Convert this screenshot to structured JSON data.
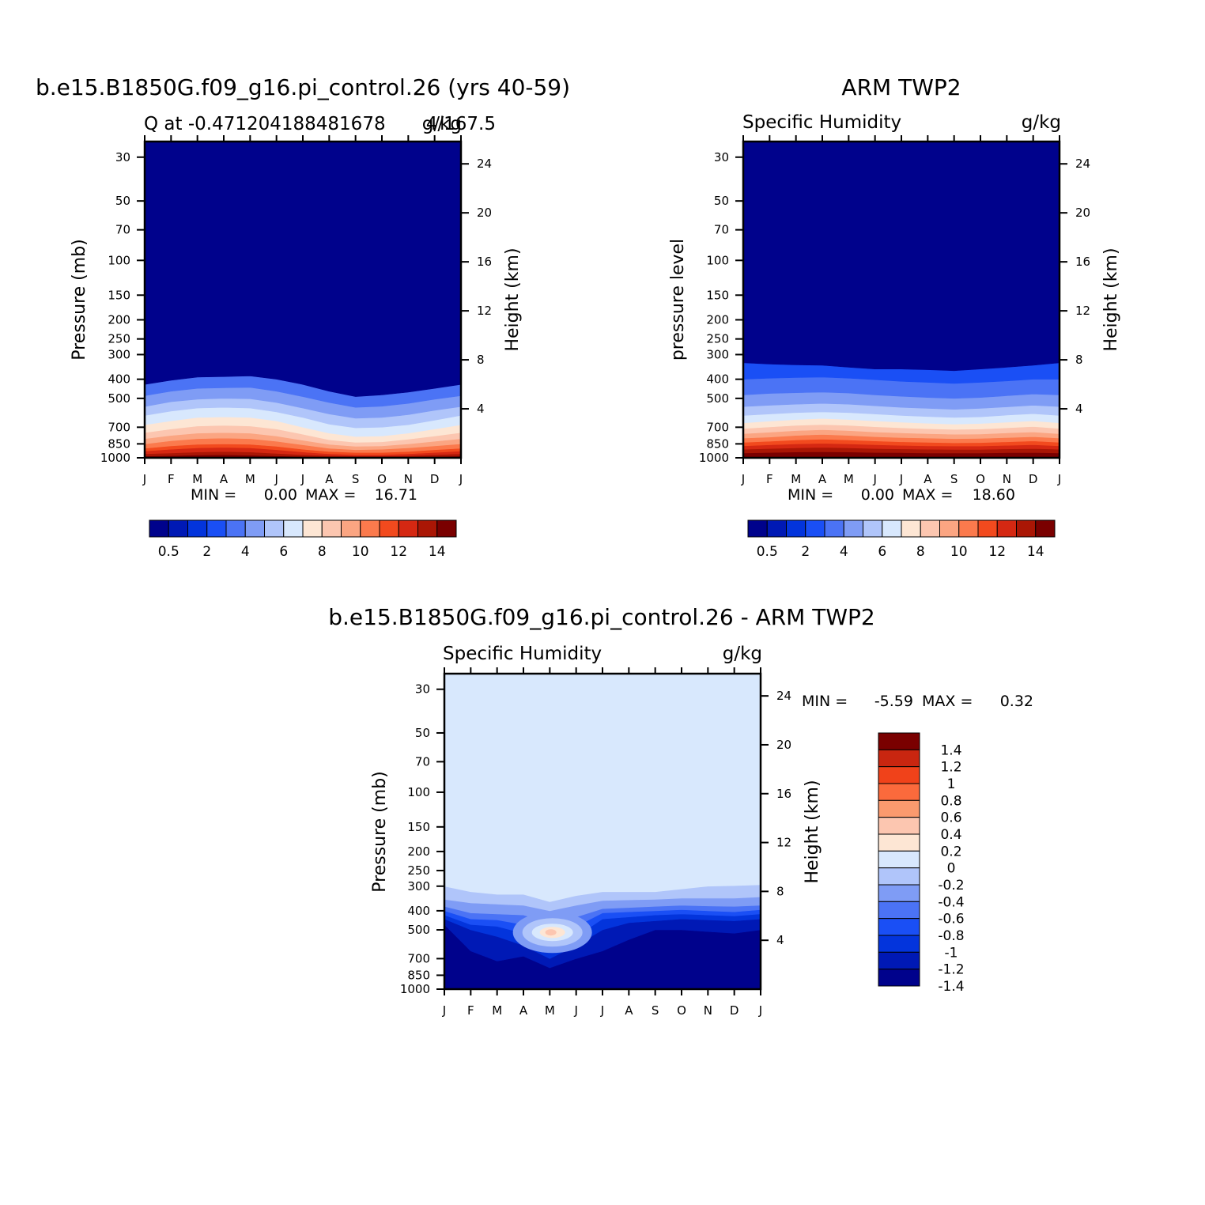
{
  "colors": {
    "fill_scale": [
      "#00028c",
      "#0019b5",
      "#0334dc",
      "#1a4ff5",
      "#4b73f5",
      "#7f9cf5",
      "#b0c5fa",
      "#d8e8fd",
      "#fde6d4",
      "#fcc6b0",
      "#fba582",
      "#fb7a4d",
      "#f24a1e",
      "#d52812",
      "#aa1605",
      "#7a0000"
    ],
    "diff_scale": [
      "#00028c",
      "#0019b5",
      "#0334dc",
      "#1a4ff5",
      "#4b73f5",
      "#7f9cf5",
      "#b0c5fa",
      "#d8e8fd",
      "#fde6d4",
      "#fcc6b0",
      "#fb9a6e",
      "#fb6a3c",
      "#f0421a",
      "#c92610",
      "#7a0000"
    ]
  },
  "panels": [
    {
      "id": "model",
      "main_title": "b.e15.B1850G.f09_g16.pi_control.26 (yrs 40-59)",
      "left_subtitle": "Q at -0.471204188481678",
      "right_subtitle": "4/167.5",
      "unit_subtitle": "g/kg",
      "ylabel": "Pressure (mb)",
      "y2label": "Height (km)",
      "min_label": "MIN =",
      "min_value": "0.00",
      "max_label": "MAX =",
      "max_value": "16.71"
    },
    {
      "id": "obs",
      "main_title": "ARM TWP2",
      "left_subtitle": "Specific Humidity",
      "unit_subtitle": "g/kg",
      "ylabel": "pressure level",
      "y2label": "Height (km)",
      "min_label": "MIN =",
      "min_value": "0.00",
      "max_label": "MAX =",
      "max_value": "18.60"
    },
    {
      "id": "diff",
      "main_title": "b.e15.B1850G.f09_g16.pi_control.26 - ARM TWP2",
      "left_subtitle": "Specific Humidity",
      "unit_subtitle": "g/kg",
      "ylabel": "Pressure (mb)",
      "y2label": "Height (km)",
      "min_label": "MIN =",
      "min_value": "-5.59",
      "max_label": "MAX =",
      "max_value": "0.32"
    }
  ],
  "chart_data": [
    {
      "type": "heatmap",
      "title": "b.e15.B1850G.f09_g16.pi_control.26 (yrs 40-59)",
      "xlabel": "",
      "ylabel": "Pressure (mb)",
      "y2label": "Height (km)",
      "x_tick_labels": [
        "J",
        "F",
        "M",
        "A",
        "M",
        "J",
        "J",
        "A",
        "S",
        "O",
        "N",
        "D",
        "J"
      ],
      "y_ticks": [
        30,
        50,
        70,
        100,
        150,
        200,
        250,
        300,
        400,
        500,
        700,
        850,
        1000
      ],
      "y2_ticks": [
        4,
        8,
        12,
        16,
        20,
        24
      ],
      "ylim": [
        1000,
        25
      ],
      "y_scale": "log",
      "contour_levels": [
        0.5,
        1,
        2,
        3,
        4,
        5,
        6,
        7,
        8,
        9,
        10,
        11,
        12,
        13,
        14
      ],
      "colorbar_labels": [
        "0.5",
        "2",
        "4",
        "6",
        "8",
        "10",
        "12",
        "14"
      ],
      "level_boundaries_mb": [
        [
          1000,
          1000,
          1000,
          1000,
          1000,
          1000,
          1000,
          1000,
          1000,
          1000,
          1000,
          1000,
          1000
        ],
        [
          980,
          975,
          968,
          965,
          970,
          978,
          985,
          988,
          990,
          990,
          988,
          985,
          980
        ],
        [
          955,
          945,
          935,
          930,
          935,
          950,
          965,
          975,
          980,
          980,
          975,
          965,
          955
        ],
        [
          925,
          905,
          890,
          885,
          890,
          910,
          935,
          955,
          965,
          965,
          955,
          940,
          925
        ],
        [
          895,
          870,
          855,
          850,
          855,
          875,
          905,
          930,
          940,
          940,
          930,
          910,
          895
        ],
        [
          850,
          820,
          800,
          795,
          800,
          825,
          860,
          895,
          910,
          905,
          890,
          870,
          850
        ],
        [
          800,
          770,
          750,
          745,
          750,
          775,
          815,
          855,
          875,
          870,
          850,
          825,
          800
        ],
        [
          745,
          715,
          690,
          685,
          690,
          715,
          760,
          810,
          835,
          830,
          805,
          775,
          745
        ],
        [
          680,
          650,
          625,
          620,
          625,
          650,
          700,
          750,
          780,
          775,
          750,
          715,
          680
        ],
        [
          610,
          580,
          560,
          555,
          560,
          585,
          625,
          675,
          705,
          700,
          680,
          645,
          610
        ],
        [
          550,
          520,
          505,
          500,
          502,
          525,
          560,
          600,
          630,
          625,
          605,
          575,
          550
        ],
        [
          485,
          460,
          445,
          442,
          440,
          460,
          490,
          525,
          555,
          548,
          530,
          505,
          485
        ],
        [
          425,
          405,
          390,
          388,
          385,
          400,
          425,
          460,
          490,
          480,
          465,
          445,
          425
        ],
        [
          25,
          25,
          25,
          25,
          25,
          25,
          25,
          25,
          25,
          25,
          25,
          25,
          25
        ]
      ],
      "min": 0.0,
      "max": 16.71
    },
    {
      "type": "heatmap",
      "title": "ARM TWP2",
      "xlabel": "",
      "ylabel": "pressure level",
      "y2label": "Height (km)",
      "x_tick_labels": [
        "J",
        "F",
        "M",
        "A",
        "M",
        "J",
        "J",
        "A",
        "S",
        "O",
        "N",
        "D",
        "J"
      ],
      "y_ticks": [
        30,
        50,
        70,
        100,
        150,
        200,
        250,
        300,
        400,
        500,
        700,
        850,
        1000
      ],
      "y2_ticks": [
        4,
        8,
        12,
        16,
        20,
        24
      ],
      "ylim": [
        1000,
        25
      ],
      "y_scale": "log",
      "contour_levels": [
        0.5,
        1,
        2,
        3,
        4,
        5,
        6,
        7,
        8,
        9,
        10,
        11,
        12,
        13,
        14
      ],
      "colorbar_labels": [
        "0.5",
        "2",
        "4",
        "6",
        "8",
        "10",
        "12",
        "14"
      ],
      "level_boundaries_mb": [
        [
          1000,
          1000,
          1000,
          1000,
          1000,
          1000,
          1000,
          1000,
          1000,
          1000,
          1000,
          1000,
          1000
        ],
        [
          945,
          940,
          935,
          932,
          935,
          940,
          942,
          945,
          945,
          945,
          942,
          940,
          945
        ],
        [
          905,
          898,
          890,
          885,
          890,
          898,
          902,
          905,
          908,
          908,
          902,
          898,
          905
        ],
        [
          870,
          860,
          850,
          845,
          850,
          858,
          865,
          870,
          872,
          872,
          865,
          858,
          870
        ],
        [
          835,
          825,
          812,
          805,
          812,
          822,
          830,
          835,
          840,
          838,
          830,
          822,
          835
        ],
        [
          795,
          785,
          770,
          762,
          770,
          782,
          790,
          795,
          800,
          798,
          790,
          782,
          795
        ],
        [
          755,
          742,
          728,
          720,
          728,
          740,
          748,
          755,
          760,
          758,
          748,
          740,
          755
        ],
        [
          710,
          698,
          685,
          678,
          685,
          696,
          705,
          712,
          718,
          715,
          705,
          695,
          710
        ],
        [
          665,
          652,
          640,
          632,
          640,
          650,
          660,
          668,
          675,
          670,
          660,
          650,
          665
        ],
        [
          610,
          600,
          590,
          585,
          590,
          600,
          610,
          618,
          625,
          620,
          608,
          598,
          610
        ],
        [
          550,
          542,
          535,
          530,
          535,
          545,
          555,
          562,
          568,
          562,
          552,
          542,
          550
        ],
        [
          480,
          472,
          468,
          465,
          470,
          480,
          488,
          495,
          500,
          495,
          485,
          475,
          480
        ],
        [
          400,
          395,
          392,
          390,
          395,
          402,
          410,
          415,
          420,
          415,
          408,
          400,
          400
        ],
        [
          330,
          335,
          338,
          340,
          348,
          355,
          355,
          358,
          362,
          355,
          348,
          340,
          330
        ],
        [
          25,
          25,
          25,
          25,
          25,
          25,
          25,
          25,
          25,
          25,
          25,
          25,
          25
        ]
      ],
      "min": 0.0,
      "max": 18.6
    },
    {
      "type": "heatmap",
      "title": "b.e15.B1850G.f09_g16.pi_control.26 - ARM TWP2",
      "xlabel": "",
      "ylabel": "Pressure (mb)",
      "y2label": "Height (km)",
      "x_tick_labels": [
        "J",
        "F",
        "M",
        "A",
        "M",
        "J",
        "J",
        "A",
        "S",
        "O",
        "N",
        "D",
        "J"
      ],
      "y_ticks": [
        30,
        50,
        70,
        100,
        150,
        200,
        250,
        300,
        400,
        500,
        700,
        850,
        1000
      ],
      "y2_ticks": [
        4,
        8,
        12,
        16,
        20,
        24
      ],
      "ylim": [
        1000,
        25
      ],
      "y_scale": "log",
      "contour_levels": [
        -1.4,
        -1.2,
        -1,
        -0.8,
        -0.6,
        -0.4,
        -0.2,
        0,
        0.2,
        0.4,
        0.6,
        0.8,
        1,
        1.2,
        1.4
      ],
      "colorbar_labels": [
        "1.4",
        "1.2",
        "1",
        "0.8",
        "0.6",
        "0.4",
        "0.2",
        "0",
        "-0.2",
        "-0.4",
        "-0.6",
        "-0.8",
        "-1",
        "-1.2",
        "-1.4"
      ],
      "level_boundaries_mb": [
        [
          1000,
          1000,
          1000,
          1000,
          1000,
          1000,
          1000,
          1000,
          1000,
          1000,
          1000,
          1000,
          1000
        ],
        [
          470,
          640,
          720,
          680,
          780,
          700,
          640,
          560,
          500,
          500,
          510,
          520,
          500
        ],
        [
          440,
          500,
          540,
          600,
          700,
          600,
          500,
          460,
          450,
          440,
          445,
          450,
          440
        ],
        [
          420,
          470,
          480,
          520,
          620,
          540,
          440,
          430,
          420,
          415,
          420,
          425,
          415
        ],
        [
          400,
          440,
          445,
          470,
          560,
          480,
          410,
          405,
          400,
          395,
          400,
          405,
          395
        ],
        [
          380,
          410,
          415,
          420,
          460,
          430,
          390,
          385,
          380,
          375,
          378,
          380,
          375
        ],
        [
          350,
          365,
          370,
          375,
          400,
          375,
          355,
          352,
          350,
          345,
          345,
          345,
          340
        ],
        [
          300,
          320,
          330,
          330,
          360,
          335,
          320,
          320,
          320,
          310,
          300,
          298,
          295
        ],
        [
          25,
          25,
          25,
          25,
          25,
          25,
          25,
          25,
          25,
          25,
          25,
          25,
          25
        ]
      ],
      "anomaly_center": {
        "month_index": 4.1,
        "pressure_mb": 515,
        "value": 0.32
      },
      "min": -5.59,
      "max": 0.32
    }
  ]
}
